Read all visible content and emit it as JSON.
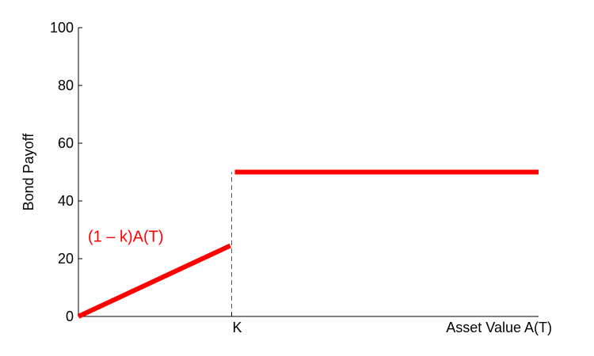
{
  "chart_data": {
    "type": "line",
    "title": "",
    "xlabel": "Asset Value A(T)",
    "ylabel": "Bond Payoff",
    "ylim": [
      0,
      100
    ],
    "yticks": [
      0,
      20,
      40,
      60,
      80,
      100
    ],
    "xlim": [
      0,
      100
    ],
    "x_markers": [
      {
        "label": "K",
        "x": 33.3
      }
    ],
    "grid": false,
    "series": [
      {
        "color": "#ff0000",
        "segments": [
          {
            "x": [
              0,
              33
            ],
            "y": [
              0,
              24.5
            ]
          },
          {
            "x": [
              34,
              100
            ],
            "y": [
              50,
              50
            ]
          }
        ]
      }
    ],
    "reference_lines": [
      {
        "orientation": "vertical",
        "x": 33.3,
        "y_range": [
          0,
          50
        ],
        "style": "dashed",
        "color": "#555555"
      }
    ],
    "annotations": [
      {
        "text": "(1 – k)A(T)",
        "x": 0,
        "y": 27,
        "color": "#ff0000"
      }
    ]
  }
}
